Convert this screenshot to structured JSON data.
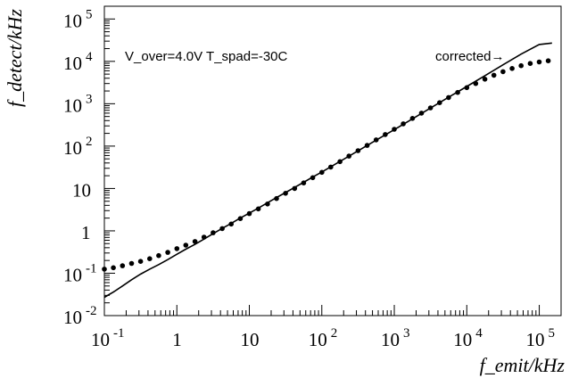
{
  "chart_data": {
    "type": "scatter",
    "title": "",
    "xlabel": "f_emit/kHz",
    "ylabel": "f_detect/kHz",
    "xscale": "log",
    "yscale": "log",
    "xlim": [
      0.1,
      200000
    ],
    "ylim": [
      0.01,
      200000
    ],
    "grid": false,
    "x_tick_labels": [
      {
        "value": 0.1,
        "base": "10",
        "exp": "-1"
      },
      {
        "value": 1,
        "base": "1",
        "exp": ""
      },
      {
        "value": 10,
        "base": "10",
        "exp": ""
      },
      {
        "value": 100,
        "base": "10",
        "exp": "2"
      },
      {
        "value": 1000,
        "base": "10",
        "exp": "3"
      },
      {
        "value": 10000,
        "base": "10",
        "exp": "4"
      },
      {
        "value": 100000,
        "base": "10",
        "exp": "5"
      }
    ],
    "y_tick_labels": [
      {
        "value": 0.01,
        "base": "10",
        "exp": "-2"
      },
      {
        "value": 0.1,
        "base": "10",
        "exp": "-1"
      },
      {
        "value": 1,
        "base": "1",
        "exp": ""
      },
      {
        "value": 10,
        "base": "10",
        "exp": ""
      },
      {
        "value": 100,
        "base": "10",
        "exp": "2"
      },
      {
        "value": 1000,
        "base": "10",
        "exp": "3"
      },
      {
        "value": 10000,
        "base": "10",
        "exp": "4"
      },
      {
        "value": 100000,
        "base": "10",
        "exp": "5"
      }
    ],
    "annotations": {
      "conditions": "V_over=4.0V T_spad=-30C",
      "corrected": "corrected→"
    },
    "series": [
      {
        "style": "markers",
        "color": "#000000",
        "points": [
          [
            0.1,
            0.125
          ],
          [
            0.133,
            0.135
          ],
          [
            0.178,
            0.15
          ],
          [
            0.237,
            0.17
          ],
          [
            0.316,
            0.19
          ],
          [
            0.422,
            0.22
          ],
          [
            0.562,
            0.26
          ],
          [
            0.75,
            0.31
          ],
          [
            1.0,
            0.38
          ],
          [
            1.33,
            0.46
          ],
          [
            1.78,
            0.56
          ],
          [
            2.37,
            0.71
          ],
          [
            3.16,
            0.9
          ],
          [
            4.22,
            1.13
          ],
          [
            5.62,
            1.45
          ],
          [
            7.5,
            1.95
          ],
          [
            10.0,
            2.55
          ],
          [
            13.3,
            3.3
          ],
          [
            17.8,
            4.3
          ],
          [
            23.7,
            5.8
          ],
          [
            31.6,
            7.7
          ],
          [
            42.2,
            10.0
          ],
          [
            56.2,
            13.5
          ],
          [
            75.0,
            18.0
          ],
          [
            100,
            24.0
          ],
          [
            133,
            32.0
          ],
          [
            178,
            43.0
          ],
          [
            237,
            58.0
          ],
          [
            316,
            78.0
          ],
          [
            422,
            104
          ],
          [
            562,
            140
          ],
          [
            750,
            188
          ],
          [
            1000,
            250
          ],
          [
            1330,
            335
          ],
          [
            1780,
            450
          ],
          [
            2370,
            600
          ],
          [
            3160,
            800
          ],
          [
            4220,
            1060
          ],
          [
            5620,
            1400
          ],
          [
            7500,
            1850
          ],
          [
            10000,
            2400
          ],
          [
            13300,
            3000
          ],
          [
            17800,
            3800
          ],
          [
            23700,
            4700
          ],
          [
            31600,
            5700
          ],
          [
            42200,
            6800
          ],
          [
            56200,
            7900
          ],
          [
            75000,
            8900
          ],
          [
            100000,
            9700
          ],
          [
            133000,
            10300
          ]
        ]
      },
      {
        "style": "line",
        "name": "corrected",
        "color": "#000000",
        "points": [
          [
            0.1,
            0.027
          ],
          [
            0.133,
            0.036
          ],
          [
            0.178,
            0.05
          ],
          [
            0.237,
            0.07
          ],
          [
            0.316,
            0.095
          ],
          [
            0.422,
            0.125
          ],
          [
            0.562,
            0.16
          ],
          [
            0.75,
            0.21
          ],
          [
            1.0,
            0.28
          ],
          [
            1.33,
            0.37
          ],
          [
            1.78,
            0.48
          ],
          [
            2.37,
            0.64
          ],
          [
            3.16,
            0.86
          ],
          [
            4.22,
            1.14
          ],
          [
            5.62,
            1.5
          ],
          [
            7.5,
            2.0
          ],
          [
            10.0,
            2.62
          ],
          [
            13.3,
            3.45
          ],
          [
            17.8,
            4.6
          ],
          [
            23.7,
            6.1
          ],
          [
            31.6,
            8.0
          ],
          [
            42.2,
            10.6
          ],
          [
            56.2,
            14.0
          ],
          [
            75.0,
            18.6
          ],
          [
            100,
            24.5
          ],
          [
            178,
            43.5
          ],
          [
            316,
            77.5
          ],
          [
            562,
            138
          ],
          [
            1000,
            245
          ],
          [
            1780,
            440
          ],
          [
            3160,
            790
          ],
          [
            5620,
            1420
          ],
          [
            10000,
            2560
          ],
          [
            17800,
            4600
          ],
          [
            31600,
            8300
          ],
          [
            56200,
            14800
          ],
          [
            100000,
            25000
          ],
          [
            150000,
            27000
          ]
        ]
      }
    ]
  }
}
